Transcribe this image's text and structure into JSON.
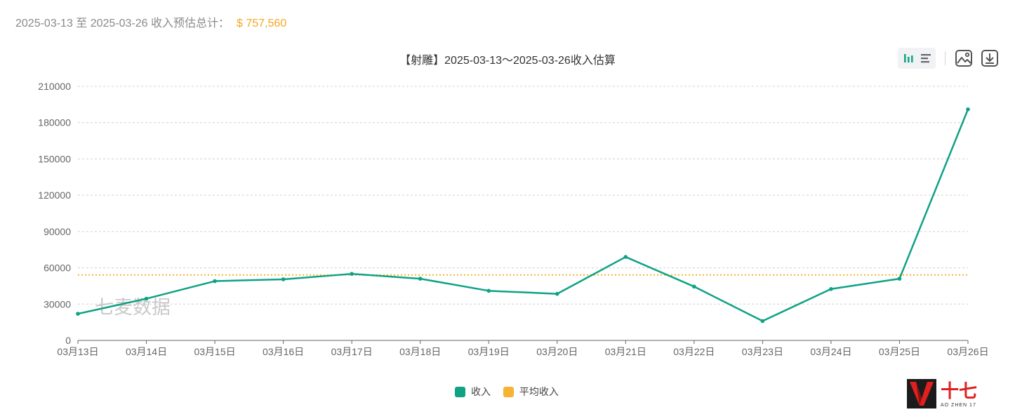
{
  "summary": {
    "label": "2025-03-13 至 2025-03-26 收入预估总计：",
    "amount": "$ 757,560"
  },
  "chart_title": "【射雕】2025-03-13～2025-03-26收入估算",
  "watermark": "七麦数据",
  "logo": {
    "text_cn": "十七",
    "text_en": "AO ZHEN 17"
  },
  "toolbar": {
    "icons": [
      "bar-chart-icon",
      "list-icon",
      "image-icon",
      "download-icon"
    ]
  },
  "legend": {
    "items": [
      {
        "label": "收入",
        "color": "#0fa284"
      },
      {
        "label": "平均收入",
        "color": "#f7b334"
      }
    ]
  },
  "chart_data": {
    "type": "line",
    "title": "【射雕】2025-03-13～2025-03-26收入估算",
    "categories": [
      "03月13日",
      "03月14日",
      "03月15日",
      "03月16日",
      "03月17日",
      "03月18日",
      "03月19日",
      "03月20日",
      "03月21日",
      "03月22日",
      "03月23日",
      "03月24日",
      "03月25日",
      "03月26日"
    ],
    "series": [
      {
        "name": "收入",
        "color": "#0fa284",
        "values": [
          22000,
          34500,
          49000,
          50500,
          55000,
          51000,
          41000,
          38500,
          69000,
          44500,
          16000,
          42500,
          51000,
          191000
        ]
      }
    ],
    "average": {
      "name": "平均收入",
      "value": 54111,
      "color": "#f7b334"
    },
    "ylim": [
      0,
      210000
    ],
    "yticks": [
      0,
      30000,
      60000,
      90000,
      120000,
      150000,
      180000,
      210000
    ],
    "grid": true,
    "legend_position": "bottom-center"
  }
}
